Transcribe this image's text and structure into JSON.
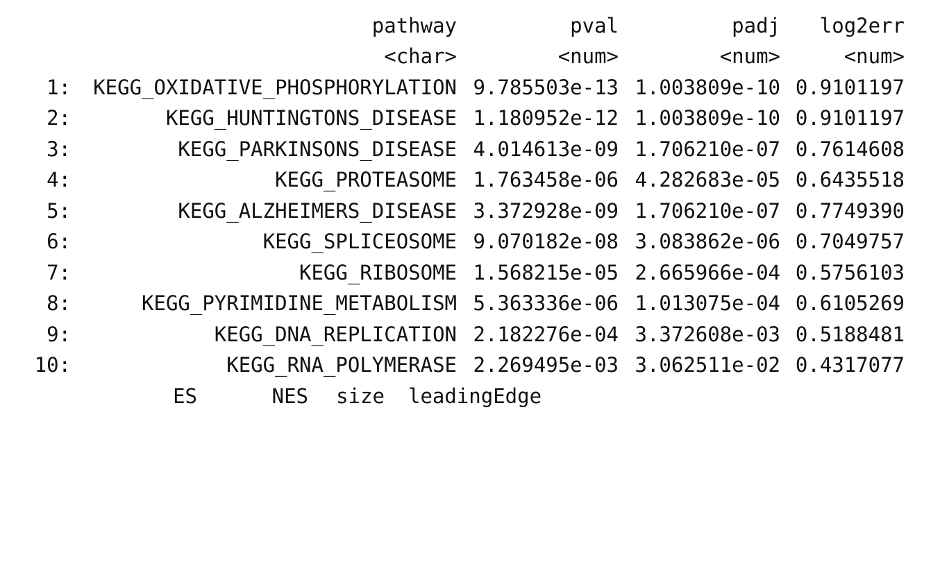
{
  "header": {
    "columns": [
      "pathway",
      "pval",
      "padj",
      "log2err"
    ],
    "types": [
      "<char>",
      "<num>",
      "<num>",
      "<num>"
    ]
  },
  "rows": [
    {
      "index": "1:",
      "pathway": "KEGG_OXIDATIVE_PHOSPHORYLATION",
      "pval": "9.785503e-13",
      "padj": "1.003809e-10",
      "log2err": "0.9101197"
    },
    {
      "index": "2:",
      "pathway": "KEGG_HUNTINGTONS_DISEASE",
      "pval": "1.180952e-12",
      "padj": "1.003809e-10",
      "log2err": "0.9101197"
    },
    {
      "index": "3:",
      "pathway": "KEGG_PARKINSONS_DISEASE",
      "pval": "4.014613e-09",
      "padj": "1.706210e-07",
      "log2err": "0.7614608"
    },
    {
      "index": "4:",
      "pathway": "KEGG_PROTEASOME",
      "pval": "1.763458e-06",
      "padj": "4.282683e-05",
      "log2err": "0.6435518"
    },
    {
      "index": "5:",
      "pathway": "KEGG_ALZHEIMERS_DISEASE",
      "pval": "3.372928e-09",
      "padj": "1.706210e-07",
      "log2err": "0.7749390"
    },
    {
      "index": "6:",
      "pathway": "KEGG_SPLICEOSOME",
      "pval": "9.070182e-08",
      "padj": "3.083862e-06",
      "log2err": "0.7049757"
    },
    {
      "index": "7:",
      "pathway": "KEGG_RIBOSOME",
      "pval": "1.568215e-05",
      "padj": "2.665966e-04",
      "log2err": "0.5756103"
    },
    {
      "index": "8:",
      "pathway": "KEGG_PYRIMIDINE_METABOLISM",
      "pval": "5.363336e-06",
      "padj": "1.013075e-04",
      "log2err": "0.6105269"
    },
    {
      "index": "9:",
      "pathway": "KEGG_DNA_REPLICATION",
      "pval": "2.182276e-04",
      "padj": "3.372608e-03",
      "log2err": "0.5188481"
    },
    {
      "index": "10:",
      "pathway": "KEGG_RNA_POLYMERASE",
      "pval": "2.269495e-03",
      "padj": "3.062511e-02",
      "log2err": "0.4317077"
    }
  ],
  "next_header": {
    "columns": [
      "ES",
      "NES",
      "size",
      "leadingEdge"
    ]
  }
}
